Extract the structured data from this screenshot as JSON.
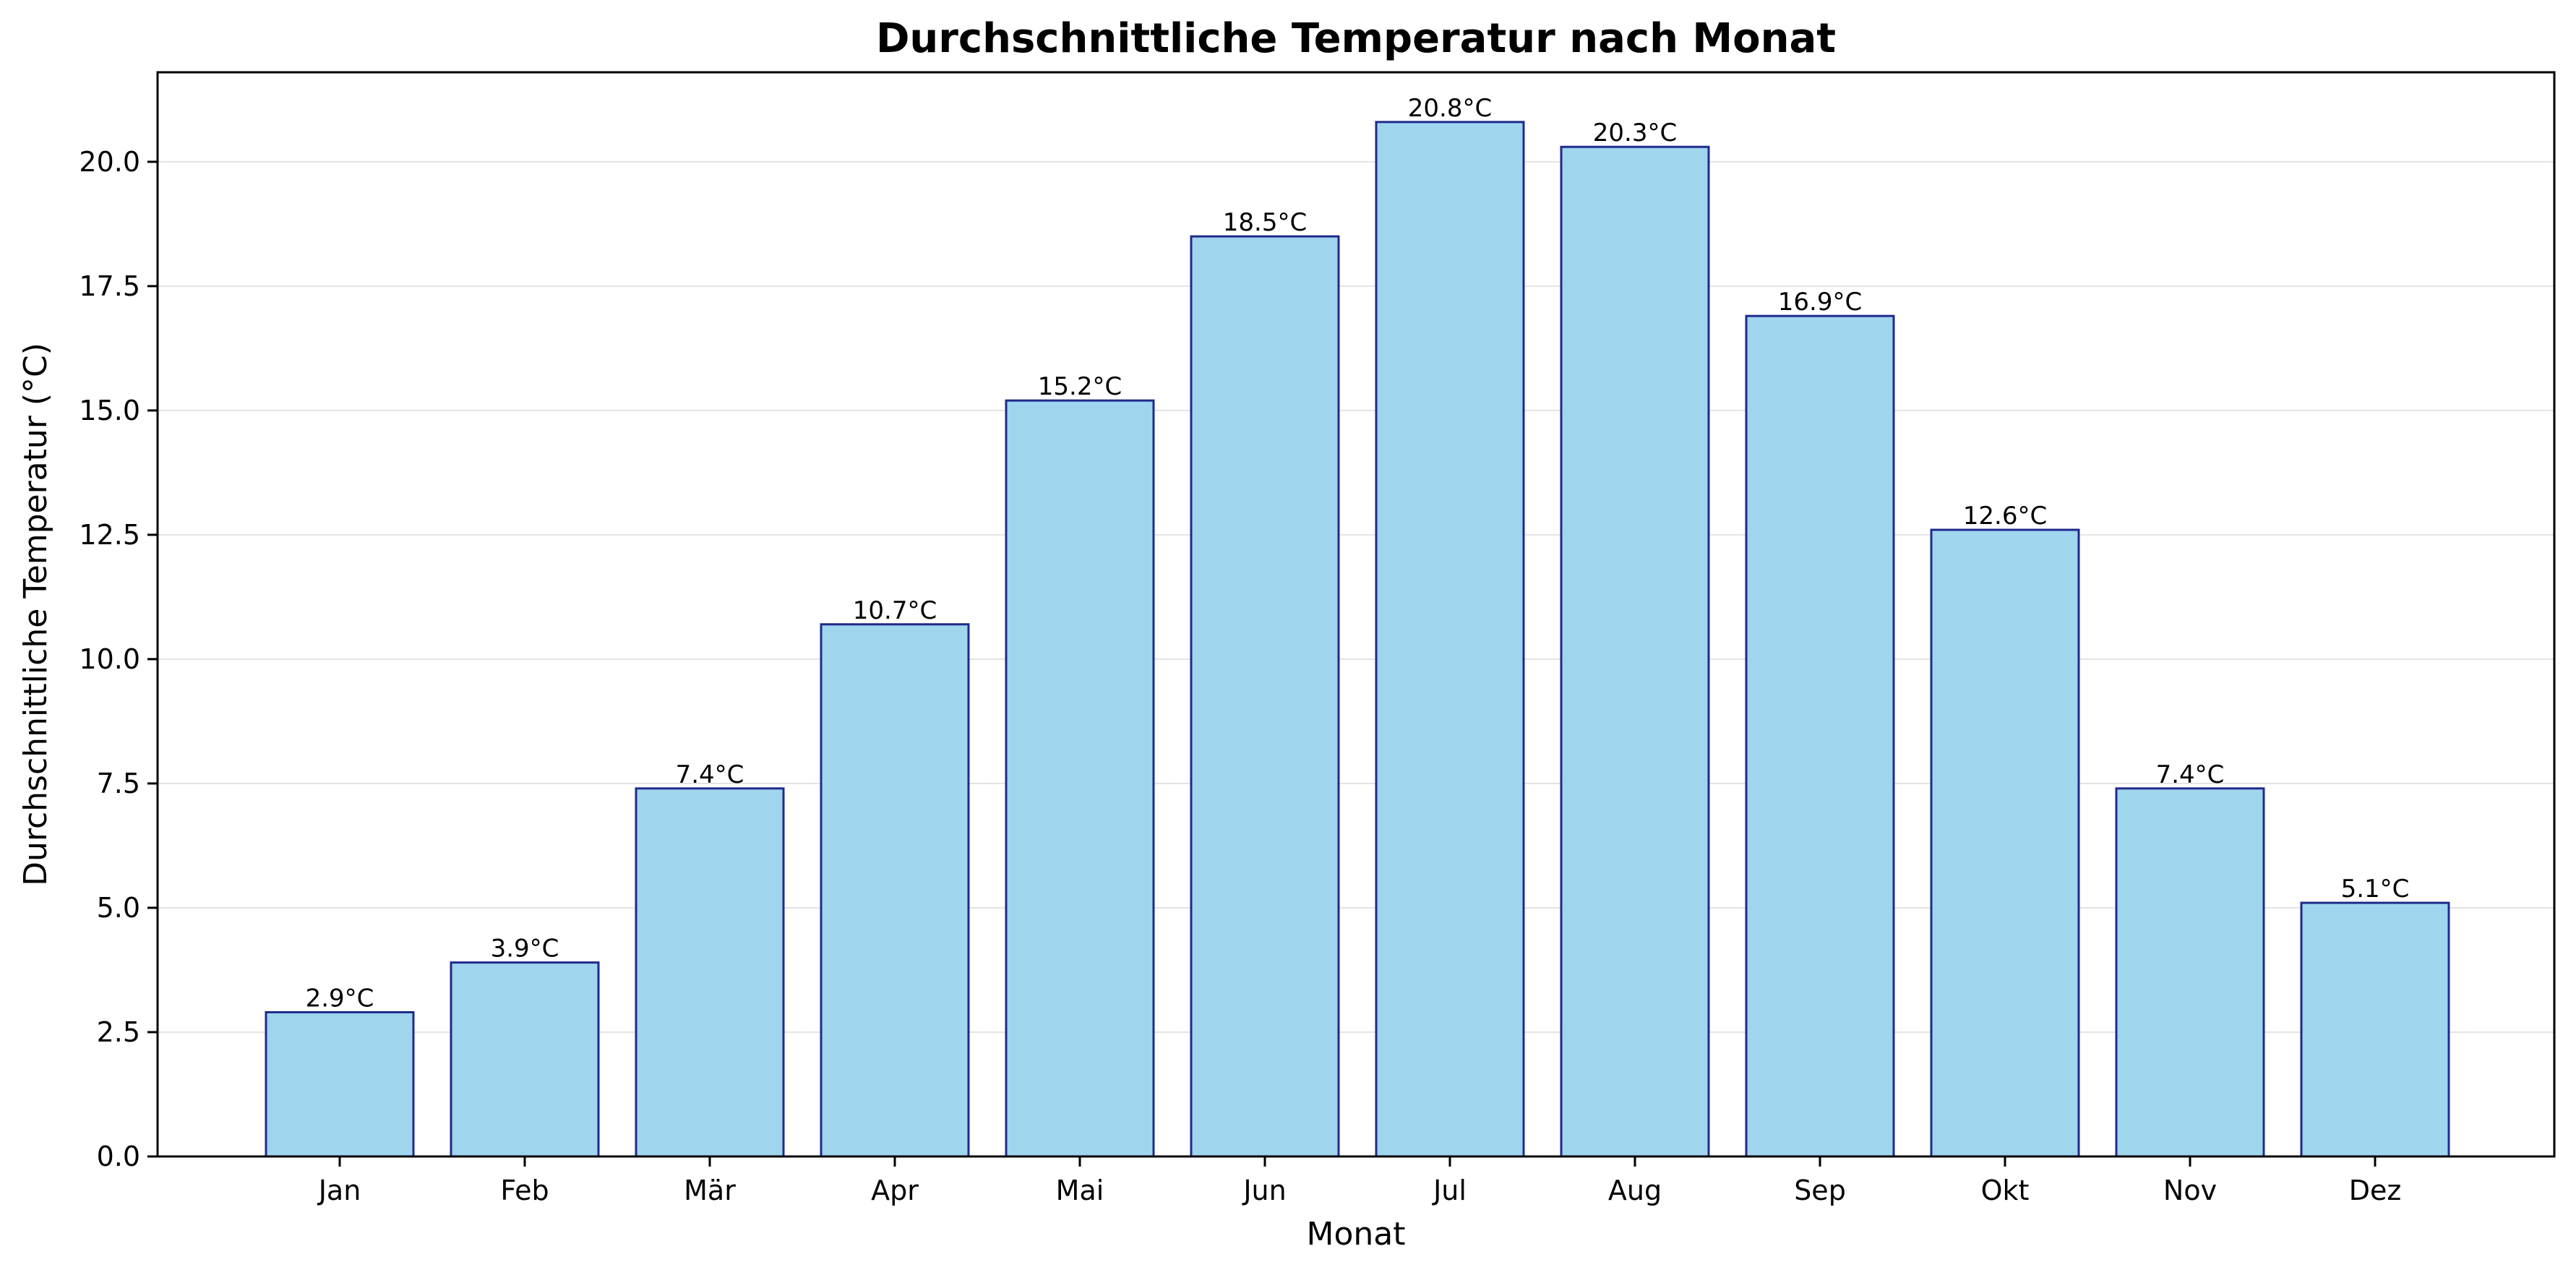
{
  "chart_data": {
    "type": "bar",
    "title": "Durchschnittliche Temperatur nach Monat",
    "xlabel": "Monat",
    "ylabel": "Durchschnittliche Temperatur (°C)",
    "categories": [
      "Jan",
      "Feb",
      "Mär",
      "Apr",
      "Mai",
      "Jun",
      "Jul",
      "Aug",
      "Sep",
      "Okt",
      "Nov",
      "Dez"
    ],
    "values": [
      2.9,
      3.9,
      7.4,
      10.7,
      15.2,
      18.5,
      20.8,
      20.3,
      16.9,
      12.6,
      7.4,
      5.1
    ],
    "value_labels": [
      "2.9°C",
      "3.9°C",
      "7.4°C",
      "10.7°C",
      "15.2°C",
      "18.5°C",
      "20.8°C",
      "20.3°C",
      "16.9°C",
      "12.6°C",
      "7.4°C",
      "5.1°C"
    ],
    "ylim": [
      0,
      21.8
    ],
    "yticks": [
      0.0,
      2.5,
      5.0,
      7.5,
      10.0,
      12.5,
      15.0,
      17.5,
      20.0
    ],
    "ytick_labels": [
      "0.0",
      "2.5",
      "5.0",
      "7.5",
      "10.0",
      "12.5",
      "15.0",
      "17.5",
      "20.0"
    ],
    "grid": "y",
    "colors": {
      "bar_fill": "#a0d5ee",
      "bar_edge": "#1f2a8c",
      "grid": "#e3e3e3",
      "axis": "#000000"
    }
  }
}
